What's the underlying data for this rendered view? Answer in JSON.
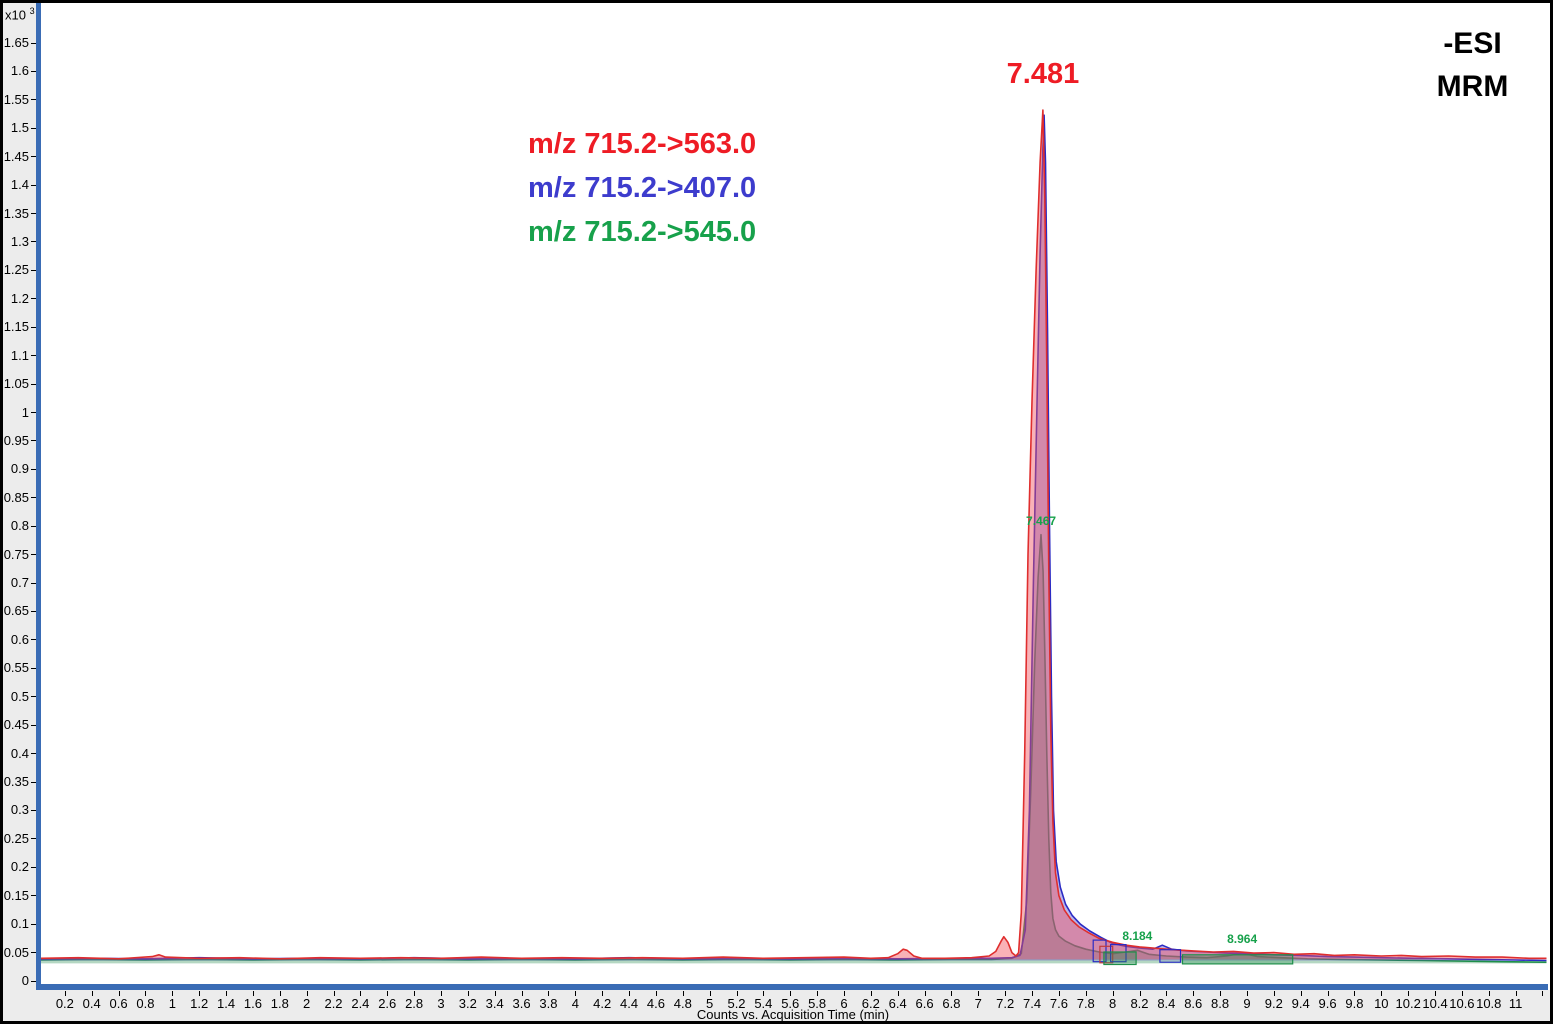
{
  "header": {
    "esi_label": "-ESI",
    "mrm_label": "MRM"
  },
  "legend": {
    "items": [
      {
        "label": "m/z 715.2->563.0",
        "color": "#ee1c25"
      },
      {
        "label": "m/z 715.2->407.0",
        "color": "#3d3ccd"
      },
      {
        "label": "m/z 715.2->545.0",
        "color": "#17a14b"
      }
    ]
  },
  "y_axis": {
    "exponent_label": "x10",
    "exponent": "3",
    "tick_labels": [
      "0",
      "0.05",
      "0.1",
      "0.15",
      "0.2",
      "0.25",
      "0.3",
      "0.35",
      "0.4",
      "0.45",
      "0.5",
      "0.55",
      "0.6",
      "0.65",
      "0.7",
      "0.75",
      "0.8",
      "0.85",
      "0.9",
      "0.95",
      "1",
      "1.05",
      "1.1",
      "1.15",
      "1.2",
      "1.25",
      "1.3",
      "1.35",
      "1.4",
      "1.45",
      "1.5",
      "1.55",
      "1.6",
      "1.65"
    ]
  },
  "x_axis": {
    "title": "Counts vs. Acquisition Time (min)",
    "tick_labels": [
      "0.2",
      "0.4",
      "0.6",
      "0.8",
      "1",
      "1.2",
      "1.4",
      "1.6",
      "1.8",
      "2",
      "2.2",
      "2.4",
      "2.6",
      "2.8",
      "3",
      "3.2",
      "3.4",
      "3.6",
      "3.8",
      "4",
      "4.2",
      "4.4",
      "4.6",
      "4.8",
      "5",
      "5.2",
      "5.4",
      "5.6",
      "5.8",
      "6",
      "6.2",
      "6.4",
      "6.6",
      "6.8",
      "7",
      "7.2",
      "7.4",
      "7.6",
      "7.8",
      "8",
      "8.2",
      "8.4",
      "8.6",
      "8.8",
      "9",
      "9.2",
      "9.4",
      "9.6",
      "9.8",
      "10",
      "10.2",
      "10.4",
      "10.6",
      "10.8",
      "11"
    ],
    "extra_unlabeled_ticks": [
      11.2
    ]
  },
  "chart_data": {
    "type": "area",
    "title": "",
    "xlabel": "Counts vs. Acquisition Time (min)",
    "ylabel": "Counts (x10^3)",
    "xlim": [
      0,
      11.23
    ],
    "ylim": [
      0,
      1.727
    ],
    "grid": false,
    "legend_position": "upper-center-left",
    "peak_annotations": [
      {
        "text": "7.481",
        "t": 7.481,
        "v": 1.532,
        "color": "#ee1c25",
        "size": "large"
      },
      {
        "text": "7.467",
        "t": 7.467,
        "v": 0.785,
        "color": "#17a14b",
        "size": "small"
      },
      {
        "text": "8.184",
        "t": 8.184,
        "v": 0.054,
        "color": "#17a14b",
        "size": "small"
      },
      {
        "text": "8.964",
        "t": 8.964,
        "v": 0.049,
        "color": "#17a14b",
        "size": "small"
      }
    ],
    "series": [
      {
        "name": "m/z 715.2->563.0",
        "stroke": "#df2e2e",
        "fill": "rgba(242,85,95,0.45)",
        "fill_base": 0.038,
        "points": [
          [
            0.02,
            0.04
          ],
          [
            0.3,
            0.041
          ],
          [
            0.6,
            0.039
          ],
          [
            0.85,
            0.043
          ],
          [
            0.9,
            0.046
          ],
          [
            0.95,
            0.042
          ],
          [
            1.2,
            0.04
          ],
          [
            1.5,
            0.041
          ],
          [
            1.8,
            0.039
          ],
          [
            2.1,
            0.041
          ],
          [
            2.4,
            0.04
          ],
          [
            2.7,
            0.041
          ],
          [
            3.0,
            0.04
          ],
          [
            3.3,
            0.042
          ],
          [
            3.6,
            0.04
          ],
          [
            3.9,
            0.041
          ],
          [
            4.2,
            0.04
          ],
          [
            4.5,
            0.041
          ],
          [
            4.8,
            0.04
          ],
          [
            5.1,
            0.042
          ],
          [
            5.4,
            0.04
          ],
          [
            5.7,
            0.041
          ],
          [
            6.0,
            0.042
          ],
          [
            6.2,
            0.04
          ],
          [
            6.33,
            0.041
          ],
          [
            6.4,
            0.048
          ],
          [
            6.44,
            0.056
          ],
          [
            6.47,
            0.054
          ],
          [
            6.52,
            0.044
          ],
          [
            6.58,
            0.04
          ],
          [
            6.75,
            0.04
          ],
          [
            6.95,
            0.041
          ],
          [
            7.08,
            0.044
          ],
          [
            7.13,
            0.052
          ],
          [
            7.17,
            0.07
          ],
          [
            7.19,
            0.078
          ],
          [
            7.22,
            0.068
          ],
          [
            7.25,
            0.05
          ],
          [
            7.28,
            0.044
          ],
          [
            7.3,
            0.05
          ],
          [
            7.32,
            0.12
          ],
          [
            7.345,
            0.4
          ],
          [
            7.37,
            0.75
          ],
          [
            7.4,
            1.02
          ],
          [
            7.43,
            1.25
          ],
          [
            7.46,
            1.44
          ],
          [
            7.481,
            1.532
          ],
          [
            7.495,
            1.38
          ],
          [
            7.51,
            1.08
          ],
          [
            7.525,
            0.72
          ],
          [
            7.54,
            0.44
          ],
          [
            7.555,
            0.28
          ],
          [
            7.575,
            0.19
          ],
          [
            7.6,
            0.15
          ],
          [
            7.64,
            0.125
          ],
          [
            7.69,
            0.108
          ],
          [
            7.75,
            0.095
          ],
          [
            7.82,
            0.085
          ],
          [
            7.9,
            0.075
          ],
          [
            8.0,
            0.068
          ],
          [
            8.1,
            0.063
          ],
          [
            8.2,
            0.06
          ],
          [
            8.3,
            0.058
          ],
          [
            8.45,
            0.055
          ],
          [
            8.6,
            0.053
          ],
          [
            8.75,
            0.051
          ],
          [
            8.9,
            0.052
          ],
          [
            9.05,
            0.049
          ],
          [
            9.2,
            0.05
          ],
          [
            9.35,
            0.047
          ],
          [
            9.5,
            0.048
          ],
          [
            9.65,
            0.045
          ],
          [
            9.8,
            0.046
          ],
          [
            10.0,
            0.044
          ],
          [
            10.15,
            0.045
          ],
          [
            10.3,
            0.043
          ],
          [
            10.5,
            0.044
          ],
          [
            10.7,
            0.042
          ],
          [
            10.9,
            0.042
          ],
          [
            11.1,
            0.04
          ],
          [
            11.23,
            0.04
          ]
        ]
      },
      {
        "name": "m/z 715.2->407.0",
        "stroke": "#2b2bc4",
        "fill": "rgba(85,70,200,0.40)",
        "fill_base": 0.036,
        "points": [
          [
            0.02,
            0.039
          ],
          [
            0.4,
            0.04
          ],
          [
            0.8,
            0.039
          ],
          [
            1.2,
            0.041
          ],
          [
            1.6,
            0.039
          ],
          [
            2.0,
            0.04
          ],
          [
            2.4,
            0.039
          ],
          [
            2.8,
            0.041
          ],
          [
            3.2,
            0.039
          ],
          [
            3.6,
            0.04
          ],
          [
            4.0,
            0.039
          ],
          [
            4.4,
            0.041
          ],
          [
            4.8,
            0.039
          ],
          [
            5.2,
            0.04
          ],
          [
            5.6,
            0.039
          ],
          [
            6.0,
            0.04
          ],
          [
            6.4,
            0.039
          ],
          [
            6.8,
            0.04
          ],
          [
            7.1,
            0.04
          ],
          [
            7.25,
            0.041
          ],
          [
            7.31,
            0.045
          ],
          [
            7.35,
            0.09
          ],
          [
            7.38,
            0.3
          ],
          [
            7.41,
            0.7
          ],
          [
            7.44,
            1.05
          ],
          [
            7.46,
            1.28
          ],
          [
            7.48,
            1.46
          ],
          [
            7.49,
            1.523
          ],
          [
            7.5,
            1.44
          ],
          [
            7.515,
            1.15
          ],
          [
            7.53,
            0.8
          ],
          [
            7.545,
            0.5
          ],
          [
            7.56,
            0.3
          ],
          [
            7.58,
            0.21
          ],
          [
            7.61,
            0.165
          ],
          [
            7.65,
            0.135
          ],
          [
            7.7,
            0.115
          ],
          [
            7.76,
            0.1
          ],
          [
            7.83,
            0.088
          ],
          [
            7.91,
            0.077
          ],
          [
            8.0,
            0.066
          ],
          [
            8.1,
            0.061
          ],
          [
            8.2,
            0.058
          ],
          [
            8.3,
            0.056
          ],
          [
            8.37,
            0.063
          ],
          [
            8.44,
            0.056
          ],
          [
            8.55,
            0.053
          ],
          [
            8.7,
            0.051
          ],
          [
            8.85,
            0.049
          ],
          [
            9.0,
            0.048
          ],
          [
            9.2,
            0.046
          ],
          [
            9.4,
            0.045
          ],
          [
            9.6,
            0.043
          ],
          [
            9.8,
            0.042
          ],
          [
            10.0,
            0.041
          ],
          [
            10.25,
            0.04
          ],
          [
            10.5,
            0.039
          ],
          [
            10.75,
            0.038
          ],
          [
            11.0,
            0.037
          ],
          [
            11.23,
            0.036
          ]
        ]
      },
      {
        "name": "m/z 715.2->545.0",
        "stroke": "#1e8f4a",
        "fill": "rgba(40,140,80,0.35)",
        "fill_base": 0.031,
        "points": [
          [
            0.02,
            0.037
          ],
          [
            0.4,
            0.038
          ],
          [
            0.8,
            0.037
          ],
          [
            1.2,
            0.038
          ],
          [
            1.6,
            0.037
          ],
          [
            2.0,
            0.038
          ],
          [
            2.4,
            0.037
          ],
          [
            2.8,
            0.038
          ],
          [
            3.2,
            0.037
          ],
          [
            3.6,
            0.038
          ],
          [
            4.0,
            0.037
          ],
          [
            4.4,
            0.038
          ],
          [
            4.8,
            0.037
          ],
          [
            5.2,
            0.038
          ],
          [
            5.6,
            0.037
          ],
          [
            6.0,
            0.038
          ],
          [
            6.4,
            0.037
          ],
          [
            6.8,
            0.038
          ],
          [
            7.1,
            0.038
          ],
          [
            7.25,
            0.04
          ],
          [
            7.32,
            0.048
          ],
          [
            7.36,
            0.14
          ],
          [
            7.39,
            0.33
          ],
          [
            7.42,
            0.56
          ],
          [
            7.445,
            0.71
          ],
          [
            7.467,
            0.785
          ],
          [
            7.482,
            0.72
          ],
          [
            7.495,
            0.58
          ],
          [
            7.51,
            0.4
          ],
          [
            7.525,
            0.25
          ],
          [
            7.54,
            0.155
          ],
          [
            7.555,
            0.11
          ],
          [
            7.575,
            0.09
          ],
          [
            7.6,
            0.079
          ],
          [
            7.65,
            0.07
          ],
          [
            7.72,
            0.062
          ],
          [
            7.8,
            0.056
          ],
          [
            7.9,
            0.051
          ],
          [
            8.0,
            0.048
          ],
          [
            8.1,
            0.051
          ],
          [
            8.184,
            0.054
          ],
          [
            8.27,
            0.047
          ],
          [
            8.4,
            0.044
          ],
          [
            8.55,
            0.042
          ],
          [
            8.7,
            0.041
          ],
          [
            8.85,
            0.044
          ],
          [
            8.964,
            0.049
          ],
          [
            9.08,
            0.043
          ],
          [
            9.25,
            0.041
          ],
          [
            9.45,
            0.039
          ],
          [
            9.7,
            0.038
          ],
          [
            10.0,
            0.037
          ],
          [
            10.3,
            0.036
          ],
          [
            10.6,
            0.035
          ],
          [
            10.9,
            0.034
          ],
          [
            11.23,
            0.033
          ]
        ]
      }
    ],
    "integration_marks": [
      {
        "shape": "rect",
        "stroke": "#2b2bc4",
        "fill": "none",
        "t1": 7.855,
        "t2": 7.95,
        "v1": 0.034,
        "v2": 0.072
      },
      {
        "shape": "rect",
        "stroke": "#c23a3a",
        "fill": "none",
        "t1": 7.905,
        "t2": 8.0,
        "v1": 0.032,
        "v2": 0.061
      },
      {
        "shape": "rect",
        "stroke": "#2b2bc4",
        "fill": "none",
        "t1": 7.985,
        "t2": 8.1,
        "v1": 0.034,
        "v2": 0.064
      },
      {
        "shape": "rect",
        "stroke": "#1e8f4a",
        "fill": "rgba(40,140,80,0.35)",
        "t1": 7.935,
        "t2": 8.175,
        "v1": 0.029,
        "v2": 0.051
      },
      {
        "shape": "rect",
        "stroke": "#2b2bc4",
        "fill": "none",
        "t1": 8.352,
        "t2": 8.505,
        "v1": 0.033,
        "v2": 0.055
      },
      {
        "shape": "rect",
        "stroke": "#1e8f4a",
        "fill": "rgba(40,140,80,0.30)",
        "t1": 8.52,
        "t2": 9.34,
        "v1": 0.03,
        "v2": 0.046
      }
    ]
  }
}
